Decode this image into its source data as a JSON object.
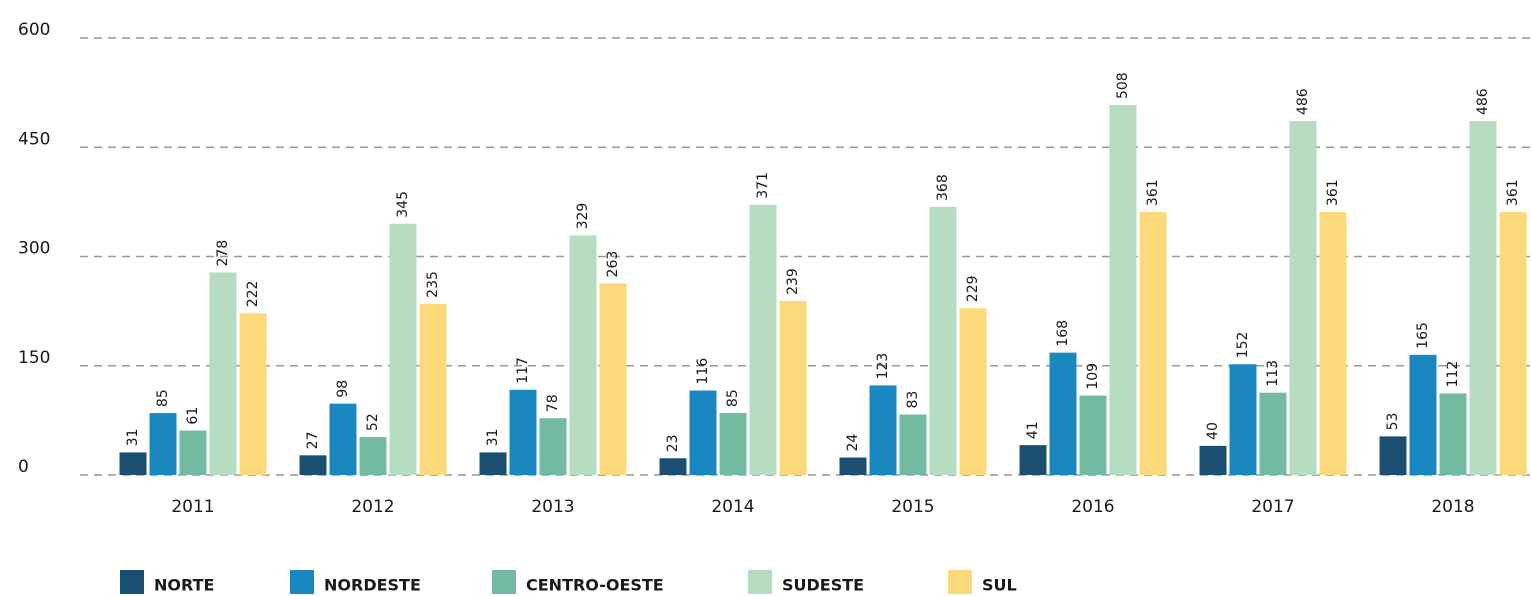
{
  "chart_data": {
    "type": "bar",
    "categories": [
      "2011",
      "2012",
      "2013",
      "2014",
      "2015",
      "2016",
      "2017",
      "2018"
    ],
    "series": [
      {
        "name": "NORTE",
        "color": "#1b4f72",
        "values": [
          31,
          27,
          31,
          23,
          24,
          41,
          40,
          53
        ]
      },
      {
        "name": "NORDESTE",
        "color": "#1a87c0",
        "values": [
          85,
          98,
          117,
          116,
          123,
          168,
          152,
          165
        ]
      },
      {
        "name": "CENTRO-OESTE",
        "color": "#72bba0",
        "values": [
          61,
          52,
          78,
          85,
          83,
          109,
          113,
          112
        ]
      },
      {
        "name": "SUDESTE",
        "color": "#b6dcc2",
        "values": [
          278,
          345,
          329,
          371,
          368,
          508,
          486,
          486
        ]
      },
      {
        "name": "SUL",
        "color": "#fcd97a",
        "values": [
          222,
          235,
          263,
          239,
          229,
          361,
          361,
          361
        ]
      }
    ],
    "ylim": [
      0,
      600
    ],
    "yticks": [
      0,
      150,
      300,
      450,
      600
    ],
    "grid": true,
    "legend": "bottom"
  }
}
